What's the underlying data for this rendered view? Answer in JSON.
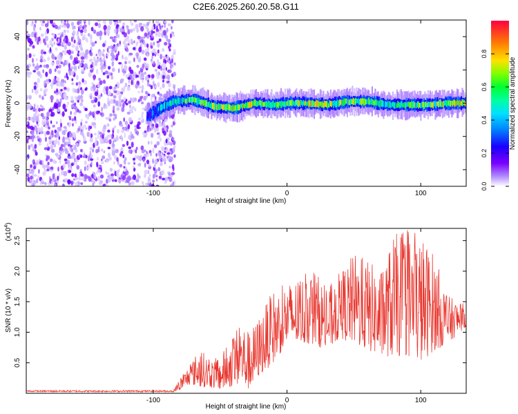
{
  "title": "C2E6.2025.260.20.58.G11",
  "chart_data": [
    {
      "type": "heatmap",
      "panel": "spectrogram",
      "xlabel": "Height of straight line (km)",
      "ylabel": "Frequency (Hz)",
      "xlim": [
        -195,
        134
      ],
      "ylim": [
        -50,
        50
      ],
      "xticks": [
        -100,
        0,
        100
      ],
      "yticks": [
        -40,
        -20,
        0,
        20,
        40
      ],
      "colorbar": {
        "label": "Normalized spectral amplitude",
        "range": [
          0,
          1
        ],
        "ticks": [
          "0.0",
          "0.2",
          "0.4",
          "0.6",
          "0.8"
        ],
        "colors": [
          "#ffffff",
          "#b08cff",
          "#7a00ff",
          "#1a00ff",
          "#00a0ff",
          "#00ffd0",
          "#00ff30",
          "#b0ff00",
          "#ffe000",
          "#ff8000",
          "#ff0040"
        ]
      },
      "noise_region": {
        "x_from": -195,
        "x_to": -88,
        "note": "low-amplitude scattered noise"
      },
      "signal_track": {
        "x": [
          -105,
          -95,
          -85,
          -70,
          -55,
          -40,
          -25,
          -10,
          0,
          15,
          30,
          45,
          60,
          75,
          90,
          105,
          120,
          134
        ],
        "freq": [
          -8,
          -3,
          1,
          2,
          -2,
          -3,
          0,
          -1,
          0,
          0,
          -1,
          1,
          1,
          -1,
          -1,
          -1,
          0,
          0
        ],
        "amplitude": [
          0.35,
          0.5,
          0.6,
          0.75,
          0.8,
          0.85,
          0.8,
          0.75,
          0.7,
          0.9,
          0.8,
          0.75,
          0.7,
          0.6,
          0.75,
          0.7,
          0.85,
          0.9
        ]
      }
    },
    {
      "type": "line",
      "panel": "snr",
      "xlabel": "Height of straight line (km)",
      "ylabel": "SNR (10 * v/v)",
      "multiplier_base": "(x10",
      "multiplier_exp": "4",
      "multiplier_close": ")",
      "xlim": [
        -195,
        134
      ],
      "ylim": [
        0,
        2.7
      ],
      "xticks": [
        -100,
        0,
        100
      ],
      "yticks": [
        "0.5",
        "1.0",
        "1.5",
        "2.0",
        "2.5"
      ],
      "color": "#e8372f",
      "envelope": {
        "x": [
          -195,
          -85,
          -80,
          -72,
          -65,
          -58,
          -50,
          -42,
          -35,
          -28,
          -20,
          -10,
          0,
          10,
          20,
          30,
          40,
          50,
          60,
          70,
          80,
          90,
          100,
          110,
          120,
          134
        ],
        "low": [
          0.02,
          0.02,
          0.05,
          0.15,
          0.1,
          0.1,
          0.05,
          0.1,
          0.15,
          0.05,
          0.3,
          0.5,
          0.8,
          0.8,
          0.8,
          0.7,
          0.9,
          0.8,
          0.7,
          0.6,
          0.6,
          0.6,
          0.5,
          0.7,
          0.8,
          1.1
        ],
        "high": [
          0.05,
          0.05,
          0.25,
          0.5,
          0.75,
          0.55,
          0.6,
          0.9,
          1.2,
          1.0,
          1.3,
          1.7,
          1.8,
          1.9,
          2.05,
          1.7,
          2.0,
          2.3,
          2.2,
          2.0,
          2.6,
          2.7,
          2.6,
          2.3,
          1.6,
          1.45
        ]
      }
    }
  ]
}
